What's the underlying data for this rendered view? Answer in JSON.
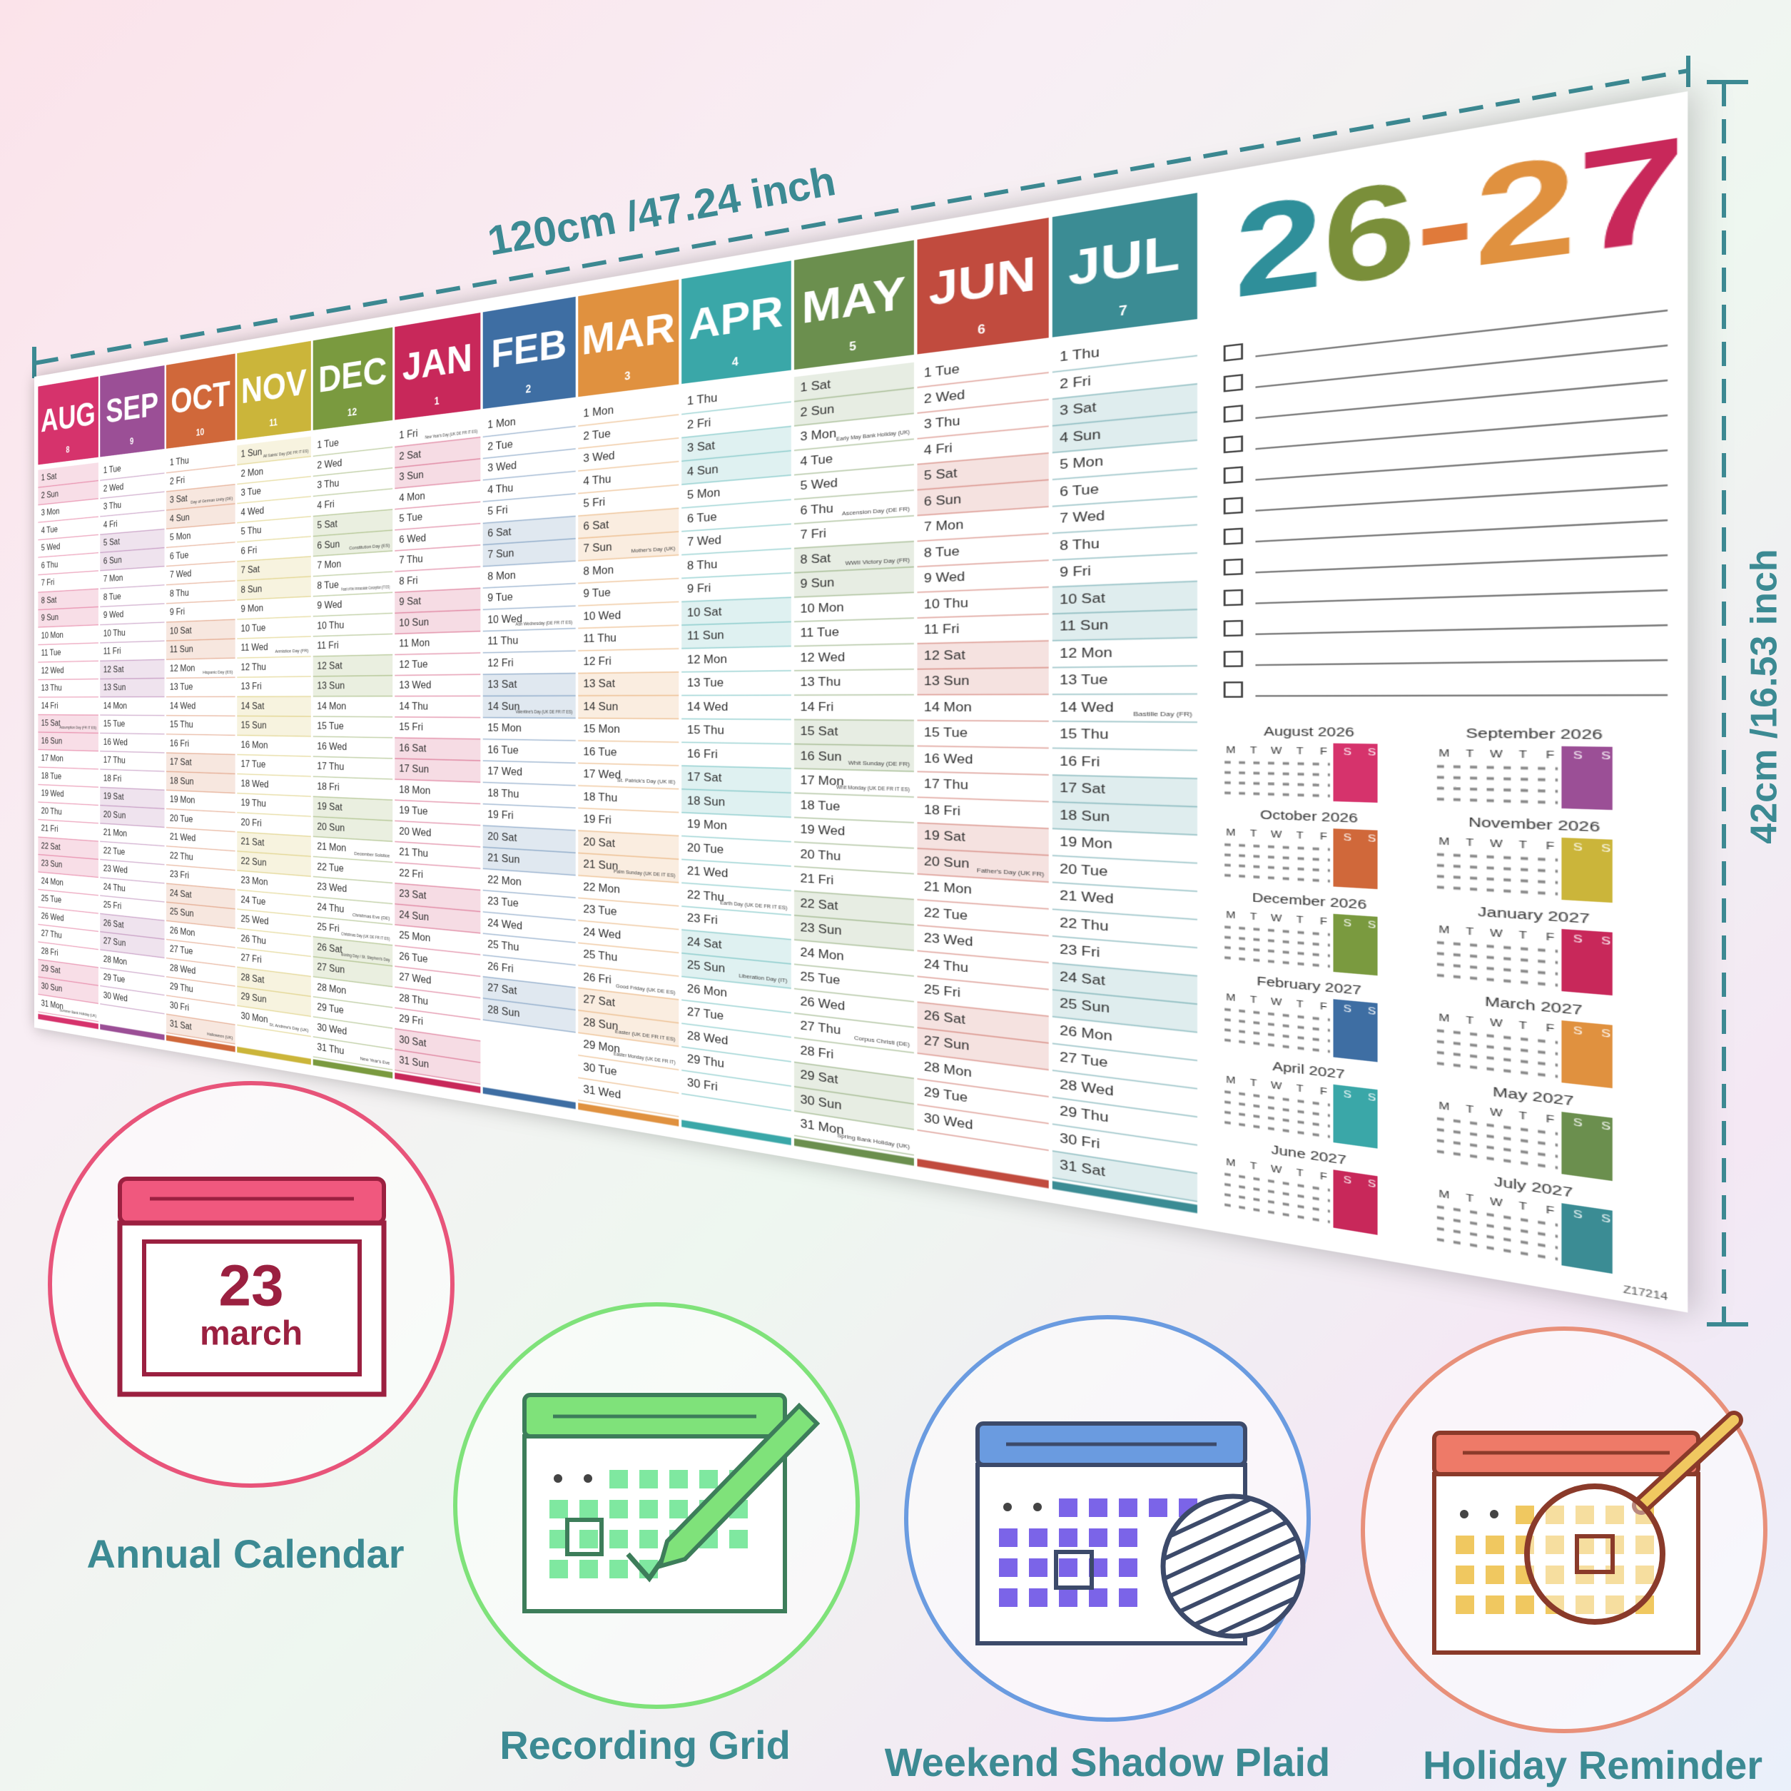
{
  "dimensions": {
    "width_label": "120cm /47.24 inch",
    "height_label": "42cm /16.53 inch"
  },
  "calendar": {
    "year_title": [
      {
        "text": "2",
        "color": "#2f8f9a"
      },
      {
        "text": "6",
        "color": "#7a8f3a"
      },
      {
        "text": "-",
        "color": "#e07a3a"
      },
      {
        "text": "2",
        "color": "#e0913f"
      },
      {
        "text": "7",
        "color": "#c8285a"
      }
    ],
    "months": [
      {
        "name": "AUG",
        "number": "8",
        "color": "#d6336c",
        "weekend": [
          1,
          2,
          8,
          9,
          15,
          16,
          22,
          23,
          29,
          30
        ],
        "days": [
          "1 Sat",
          "2 Sun",
          "3 Mon",
          "4 Tue",
          "5 Wed",
          "6 Thu",
          "7 Fri",
          "8 Sat",
          "9 Sun",
          "10 Mon",
          "11 Tue",
          "12 Wed",
          "13 Thu",
          "14 Fri",
          "15 Sat",
          "16 Sun",
          "17 Mon",
          "18 Tue",
          "19 Wed",
          "20 Thu",
          "21 Fri",
          "22 Sat",
          "23 Sun",
          "24 Mon",
          "25 Tue",
          "26 Wed",
          "27 Thu",
          "28 Fri",
          "29 Sat",
          "30 Sun",
          "31 Mon"
        ],
        "holidays": [
          {
            "date": 15,
            "name": "Assumption Day (FR IT ES)"
          },
          {
            "date": 31,
            "name": "Summer Bank Holiday (UK)"
          }
        ]
      },
      {
        "name": "SEP",
        "number": "9",
        "color": "#9b4f96",
        "weekend": [
          5,
          6,
          12,
          13,
          19,
          20,
          26,
          27
        ],
        "days": [
          "1 Tue",
          "2 Wed",
          "3 Thu",
          "4 Fri",
          "5 Sat",
          "6 Sun",
          "7 Mon",
          "8 Tue",
          "9 Wed",
          "10 Thu",
          "11 Fri",
          "12 Sat",
          "13 Sun",
          "14 Mon",
          "15 Tue",
          "16 Wed",
          "17 Thu",
          "18 Fri",
          "19 Sat",
          "20 Sun",
          "21 Mon",
          "22 Tue",
          "23 Wed",
          "24 Thu",
          "25 Fri",
          "26 Sat",
          "27 Sun",
          "28 Mon",
          "29 Tue",
          "30 Wed"
        ]
      },
      {
        "name": "OCT",
        "number": "10",
        "color": "#d0683a",
        "weekend": [
          3,
          4,
          10,
          11,
          17,
          18,
          24,
          25,
          31
        ],
        "days": [
          "1 Thu",
          "2 Fri",
          "3 Sat",
          "4 Sun",
          "5 Mon",
          "6 Tue",
          "7 Wed",
          "8 Thu",
          "9 Fri",
          "10 Sat",
          "11 Sun",
          "12 Mon",
          "13 Tue",
          "14 Wed",
          "15 Thu",
          "16 Fri",
          "17 Sat",
          "18 Sun",
          "19 Mon",
          "20 Tue",
          "21 Wed",
          "22 Thu",
          "23 Fri",
          "24 Sat",
          "25 Sun",
          "26 Mon",
          "27 Tue",
          "28 Wed",
          "29 Thu",
          "30 Fri",
          "31 Sat"
        ],
        "holidays": [
          {
            "date": 3,
            "name": "Day of German Unity (DE)"
          },
          {
            "date": 12,
            "name": "Hispanic Day (ES)"
          },
          {
            "date": 31,
            "name": "Halloween (UK)"
          }
        ]
      },
      {
        "name": "NOV",
        "number": "11",
        "color": "#cbb53a",
        "weekend": [
          1,
          7,
          8,
          14,
          15,
          21,
          22,
          28,
          29
        ],
        "days": [
          "1 Sun",
          "2 Mon",
          "3 Tue",
          "4 Wed",
          "5 Thu",
          "6 Fri",
          "7 Sat",
          "8 Sun",
          "9 Mon",
          "10 Tue",
          "11 Wed",
          "12 Thu",
          "13 Fri",
          "14 Sat",
          "15 Sun",
          "16 Mon",
          "17 Tue",
          "18 Wed",
          "19 Thu",
          "20 Fri",
          "21 Sat",
          "22 Sun",
          "23 Mon",
          "24 Tue",
          "25 Wed",
          "26 Thu",
          "27 Fri",
          "28 Sat",
          "29 Sun",
          "30 Mon"
        ],
        "holidays": [
          {
            "date": 1,
            "name": "All Saints' Day (DE FR IT ES)"
          },
          {
            "date": 11,
            "name": "Armistice Day (FR)"
          },
          {
            "date": 30,
            "name": "St. Andrew's Day (UK)"
          }
        ]
      },
      {
        "name": "DEC",
        "number": "12",
        "color": "#7a9a3f",
        "weekend": [
          5,
          6,
          12,
          13,
          19,
          20,
          26,
          27
        ],
        "days": [
          "1 Tue",
          "2 Wed",
          "3 Thu",
          "4 Fri",
          "5 Sat",
          "6 Sun",
          "7 Mon",
          "8 Tue",
          "9 Wed",
          "10 Thu",
          "11 Fri",
          "12 Sat",
          "13 Sun",
          "14 Mon",
          "15 Tue",
          "16 Wed",
          "17 Thu",
          "18 Fri",
          "19 Sat",
          "20 Sun",
          "21 Mon",
          "22 Tue",
          "23 Wed",
          "24 Thu",
          "25 Fri",
          "26 Sat",
          "27 Sun",
          "28 Mon",
          "29 Tue",
          "30 Wed",
          "31 Thu"
        ],
        "holidays": [
          {
            "date": 6,
            "name": "Constitution Day (ES)"
          },
          {
            "date": 8,
            "name": "Feast of the Immaculate Conception (IT ES)"
          },
          {
            "date": 21,
            "name": "December Solstice"
          },
          {
            "date": 24,
            "name": "Christmas Eve (DE)"
          },
          {
            "date": 25,
            "name": "Christmas Day (UK DE FR IT ES)"
          },
          {
            "date": 26,
            "name": "Boxing Day / St. Stephen's Day"
          },
          {
            "date": 31,
            "name": "New Year's Eve"
          }
        ]
      },
      {
        "name": "JAN",
        "number": "1",
        "color": "#c8285a",
        "weekend": [
          2,
          3,
          9,
          10,
          16,
          17,
          23,
          24,
          30,
          31
        ],
        "days": [
          "1 Fri",
          "2 Sat",
          "3 Sun",
          "4 Mon",
          "5 Tue",
          "6 Wed",
          "7 Thu",
          "8 Fri",
          "9 Sat",
          "10 Sun",
          "11 Mon",
          "12 Tue",
          "13 Wed",
          "14 Thu",
          "15 Fri",
          "16 Sat",
          "17 Sun",
          "18 Mon",
          "19 Tue",
          "20 Wed",
          "21 Thu",
          "22 Fri",
          "23 Sat",
          "24 Sun",
          "25 Mon",
          "26 Tue",
          "27 Wed",
          "28 Thu",
          "29 Fri",
          "30 Sat",
          "31 Sun"
        ],
        "holidays": [
          {
            "date": 1,
            "name": "New Year's Day (UK DE FR IT ES)"
          }
        ]
      },
      {
        "name": "FEB",
        "number": "2",
        "color": "#3e6ea3",
        "weekend": [
          6,
          7,
          13,
          14,
          20,
          21,
          27,
          28
        ],
        "days": [
          "1 Mon",
          "2 Tue",
          "3 Wed",
          "4 Thu",
          "5 Fri",
          "6 Sat",
          "7 Sun",
          "8 Mon",
          "9 Tue",
          "10 Wed",
          "11 Thu",
          "12 Fri",
          "13 Sat",
          "14 Sun",
          "15 Mon",
          "16 Tue",
          "17 Wed",
          "18 Thu",
          "19 Fri",
          "20 Sat",
          "21 Sun",
          "22 Mon",
          "23 Tue",
          "24 Wed",
          "25 Thu",
          "26 Fri",
          "27 Sat",
          "28 Sun"
        ],
        "holidays": [
          {
            "date": 10,
            "name": "Ash Wednesday (DE FR IT ES)"
          },
          {
            "date": 14,
            "name": "Valentine's Day (UK DE FR IT ES)"
          }
        ]
      },
      {
        "name": "MAR",
        "number": "3",
        "color": "#e0913f",
        "weekend": [
          6,
          7,
          13,
          14,
          20,
          21,
          27,
          28
        ],
        "days": [
          "1 Mon",
          "2 Tue",
          "3 Wed",
          "4 Thu",
          "5 Fri",
          "6 Sat",
          "7 Sun",
          "8 Mon",
          "9 Tue",
          "10 Wed",
          "11 Thu",
          "12 Fri",
          "13 Sat",
          "14 Sun",
          "15 Mon",
          "16 Tue",
          "17 Wed",
          "18 Thu",
          "19 Fri",
          "20 Sat",
          "21 Sun",
          "22 Mon",
          "23 Tue",
          "24 Wed",
          "25 Thu",
          "26 Fri",
          "27 Sat",
          "28 Sun",
          "29 Mon",
          "30 Tue",
          "31 Wed"
        ],
        "holidays": [
          {
            "date": 7,
            "name": "Mother's Day (UK)"
          },
          {
            "date": 17,
            "name": "St. Patrick's Day (UK IE)"
          },
          {
            "date": 21,
            "name": "Palm Sunday (UK DE IT ES)"
          },
          {
            "date": 26,
            "name": "Good Friday (UK DE ES)"
          },
          {
            "date": 28,
            "name": "Easter (UK DE FR IT ES)"
          },
          {
            "date": 29,
            "name": "Easter Monday (UK DE FR IT)"
          }
        ]
      },
      {
        "name": "APR",
        "number": "4",
        "color": "#3aa7a8",
        "weekend": [
          3,
          4,
          10,
          11,
          17,
          18,
          24,
          25
        ],
        "days": [
          "1 Thu",
          "2 Fri",
          "3 Sat",
          "4 Sun",
          "5 Mon",
          "6 Tue",
          "7 Wed",
          "8 Thu",
          "9 Fri",
          "10 Sat",
          "11 Sun",
          "12 Mon",
          "13 Tue",
          "14 Wed",
          "15 Thu",
          "16 Fri",
          "17 Sat",
          "18 Sun",
          "19 Mon",
          "20 Tue",
          "21 Wed",
          "22 Thu",
          "23 Fri",
          "24 Sat",
          "25 Sun",
          "26 Mon",
          "27 Tue",
          "28 Wed",
          "29 Thu",
          "30 Fri"
        ],
        "holidays": [
          {
            "date": 22,
            "name": "Earth Day (UK DE FR IT ES)"
          },
          {
            "date": 25,
            "name": "Liberation Day (IT)"
          }
        ]
      },
      {
        "name": "MAY",
        "number": "5",
        "color": "#6b8f4e",
        "weekend": [
          1,
          2,
          8,
          9,
          15,
          16,
          22,
          23,
          29,
          30
        ],
        "days": [
          "1 Sat",
          "2 Sun",
          "3 Mon",
          "4 Tue",
          "5 Wed",
          "6 Thu",
          "7 Fri",
          "8 Sat",
          "9 Sun",
          "10 Mon",
          "11 Tue",
          "12 Wed",
          "13 Thu",
          "14 Fri",
          "15 Sat",
          "16 Sun",
          "17 Mon",
          "18 Tue",
          "19 Wed",
          "20 Thu",
          "21 Fri",
          "22 Sat",
          "23 Sun",
          "24 Mon",
          "25 Tue",
          "26 Wed",
          "27 Thu",
          "28 Fri",
          "29 Sat",
          "30 Sun",
          "31 Mon"
        ],
        "holidays": [
          {
            "date": 3,
            "name": "Early May Bank Holiday (UK)"
          },
          {
            "date": 6,
            "name": "Ascension Day (DE FR)"
          },
          {
            "date": 8,
            "name": "WWII Victory Day (FR)"
          },
          {
            "date": 16,
            "name": "Whit Sunday (DE FR)"
          },
          {
            "date": 17,
            "name": "Whit Monday (UK DE FR IT ES)"
          },
          {
            "date": 27,
            "name": "Corpus Christi (DE)"
          },
          {
            "date": 31,
            "name": "Spring Bank Holiday (UK)"
          }
        ]
      },
      {
        "name": "JUN",
        "number": "6",
        "color": "#c14b3e",
        "weekend": [
          5,
          6,
          12,
          13,
          19,
          20,
          26,
          27
        ],
        "days": [
          "1 Tue",
          "2 Wed",
          "3 Thu",
          "4 Fri",
          "5 Sat",
          "6 Sun",
          "7 Mon",
          "8 Tue",
          "9 Wed",
          "10 Thu",
          "11 Fri",
          "12 Sat",
          "13 Sun",
          "14 Mon",
          "15 Tue",
          "16 Wed",
          "17 Thu",
          "18 Fri",
          "19 Sat",
          "20 Sun",
          "21 Mon",
          "22 Tue",
          "23 Wed",
          "24 Thu",
          "25 Fri",
          "26 Sat",
          "27 Sun",
          "28 Mon",
          "29 Tue",
          "30 Wed"
        ],
        "holidays": [
          {
            "date": 20,
            "name": "Father's Day (UK FR)"
          }
        ]
      },
      {
        "name": "JUL",
        "number": "7",
        "color": "#3b8c94",
        "weekend": [
          3,
          4,
          10,
          11,
          17,
          18,
          24,
          25,
          31
        ],
        "days": [
          "1 Thu",
          "2 Fri",
          "3 Sat",
          "4 Sun",
          "5 Mon",
          "6 Tue",
          "7 Wed",
          "8 Thu",
          "9 Fri",
          "10 Sat",
          "11 Sun",
          "12 Mon",
          "13 Tue",
          "14 Wed",
          "15 Thu",
          "16 Fri",
          "17 Sat",
          "18 Sun",
          "19 Mon",
          "20 Tue",
          "21 Wed",
          "22 Thu",
          "23 Fri",
          "24 Sat",
          "25 Sun",
          "26 Mon",
          "27 Tue",
          "28 Wed",
          "29 Thu",
          "30 Fri",
          "31 Sat"
        ],
        "holidays": [
          {
            "date": 14,
            "name": "Bastille Day (FR)"
          }
        ]
      }
    ],
    "mini_weekdays": [
      "M",
      "T",
      "W",
      "T",
      "F",
      "S",
      "S"
    ],
    "mini_months": [
      {
        "title": "August 2026",
        "color": "#d6336c"
      },
      {
        "title": "September 2026",
        "color": "#9b4f96"
      },
      {
        "title": "October 2026",
        "color": "#d0683a"
      },
      {
        "title": "November 2026",
        "color": "#cbb53a"
      },
      {
        "title": "December 2026",
        "color": "#7a9a3f"
      },
      {
        "title": "January 2027",
        "color": "#c8285a"
      },
      {
        "title": "February 2027",
        "color": "#3e6ea3"
      },
      {
        "title": "March 2027",
        "color": "#e0913f"
      },
      {
        "title": "April 2027",
        "color": "#3aa7a8"
      },
      {
        "title": "May 2027",
        "color": "#6b8f4e"
      },
      {
        "title": "June 2027",
        "color": "#c8285a"
      },
      {
        "title": "July 2027",
        "color": "#3b8c94"
      }
    ],
    "code": "Z17214"
  },
  "icon": {
    "day": "23",
    "month": "march"
  },
  "features": [
    {
      "label": "Annual Calendar"
    },
    {
      "label": "Recording Grid"
    },
    {
      "label": "Weekend Shadow Plaid"
    },
    {
      "label": "Holiday Reminder"
    }
  ]
}
